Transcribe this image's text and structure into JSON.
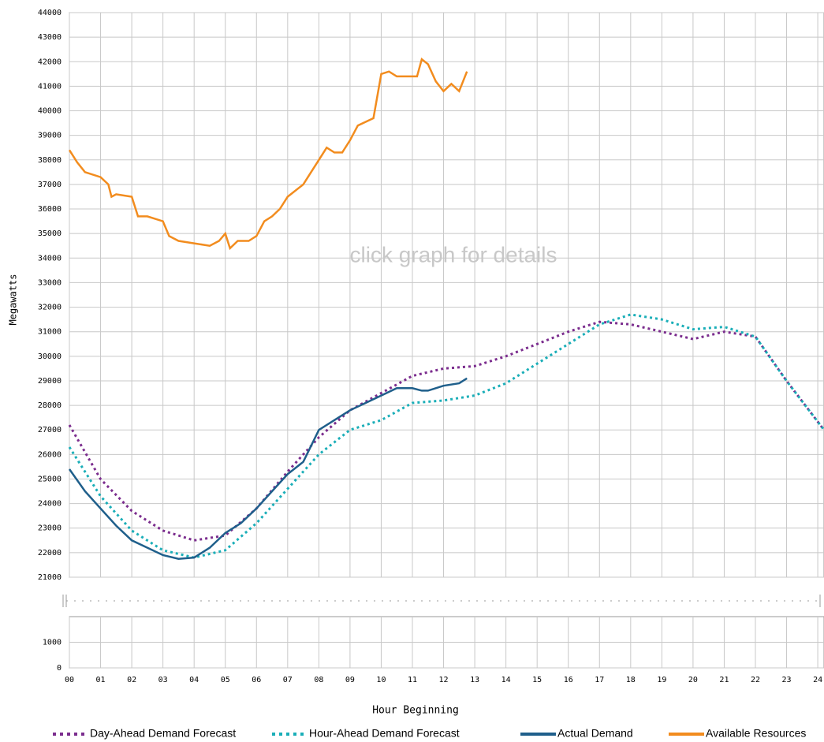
{
  "chart_data": {
    "type": "line",
    "annotation": "click graph for details",
    "x_label": "Hour Beginning",
    "y_label": "Megawatts",
    "xlim": [
      0,
      24.2
    ],
    "xticks": [
      {
        "value": 0,
        "label": "00"
      },
      {
        "value": 1,
        "label": "01"
      },
      {
        "value": 2,
        "label": "02"
      },
      {
        "value": 3,
        "label": "03"
      },
      {
        "value": 4,
        "label": "04"
      },
      {
        "value": 5,
        "label": "05"
      },
      {
        "value": 6,
        "label": "06"
      },
      {
        "value": 7,
        "label": "07"
      },
      {
        "value": 8,
        "label": "08"
      },
      {
        "value": 9,
        "label": "09"
      },
      10,
      11,
      12,
      13,
      14,
      15,
      16,
      17,
      18,
      19,
      20,
      21,
      22,
      23,
      24
    ],
    "ylim": [
      21000,
      44000
    ],
    "yticks": [
      21000,
      22000,
      23000,
      24000,
      25000,
      26000,
      27000,
      28000,
      29000,
      30000,
      31000,
      32000,
      33000,
      34000,
      35000,
      36000,
      37000,
      38000,
      39000,
      40000,
      41000,
      42000,
      43000,
      44000
    ],
    "lower_panel": {
      "ylim": [
        0,
        2000
      ],
      "yticks": [
        0,
        1000
      ]
    },
    "grid": true,
    "legend": "bottom",
    "series": [
      {
        "name": "Day-Ahead Demand Forecast",
        "color": "#7b2d8e",
        "style": "dotted",
        "x": [
          0,
          1,
          2,
          3,
          4,
          5,
          6,
          7,
          8,
          9,
          10,
          11,
          12,
          13,
          14,
          15,
          16,
          17,
          18,
          19,
          20,
          21,
          22,
          23,
          24.2
        ],
        "values": [
          27200,
          25000,
          23700,
          22900,
          22500,
          22700,
          23800,
          25300,
          26700,
          27800,
          28500,
          29200,
          29500,
          29600,
          30000,
          30500,
          31000,
          31400,
          31300,
          31000,
          30700,
          31000,
          30800,
          29000,
          27000
        ]
      },
      {
        "name": "Hour-Ahead Demand Forecast",
        "color": "#1aaeb8",
        "style": "dotted",
        "x": [
          0,
          1,
          2,
          3,
          4,
          5,
          6,
          7,
          8,
          9,
          10,
          11,
          12,
          13,
          14,
          15,
          16,
          17,
          18,
          19,
          20,
          21,
          22,
          23,
          24.2
        ],
        "values": [
          26300,
          24300,
          22900,
          22100,
          21800,
          22100,
          23200,
          24600,
          26000,
          27000,
          27400,
          28100,
          28200,
          28400,
          28900,
          29700,
          30500,
          31300,
          31700,
          31500,
          31100,
          31200,
          30800,
          29000,
          27000
        ]
      },
      {
        "name": "Actual Demand",
        "color": "#1f5f8b",
        "style": "solid",
        "x": [
          0,
          0.5,
          1,
          1.5,
          2,
          2.5,
          3,
          3.5,
          4,
          4.5,
          5,
          5.5,
          6,
          6.5,
          7,
          7.5,
          8,
          8.5,
          9,
          9.5,
          10,
          10.5,
          11,
          11.3,
          11.5,
          12,
          12.5,
          12.75
        ],
        "values": [
          25400,
          24500,
          23800,
          23100,
          22500,
          22200,
          21900,
          21750,
          21800,
          22200,
          22800,
          23200,
          23800,
          24500,
          25200,
          25700,
          27000,
          27400,
          27800,
          28100,
          28400,
          28700,
          28700,
          28600,
          28600,
          28800,
          28900,
          29100
        ]
      },
      {
        "name": "Available Resources",
        "color": "#f28c1e",
        "style": "solid",
        "x": [
          0,
          0.25,
          0.5,
          1,
          1.25,
          1.35,
          1.5,
          2,
          2.2,
          2.5,
          3,
          3.2,
          3.5,
          4,
          4.5,
          4.8,
          5,
          5.15,
          5.4,
          5.75,
          6,
          6.25,
          6.5,
          6.75,
          7,
          7.5,
          7.75,
          8,
          8.25,
          8.5,
          8.75,
          9,
          9.25,
          9.75,
          10,
          10.25,
          10.5,
          11,
          11.15,
          11.3,
          11.5,
          11.75,
          12,
          12.25,
          12.5,
          12.75
        ],
        "values": [
          38400,
          37900,
          37500,
          37300,
          37000,
          36500,
          36600,
          36500,
          35700,
          35700,
          35500,
          34900,
          34700,
          34600,
          34500,
          34700,
          35000,
          34400,
          34700,
          34700,
          34900,
          35500,
          35700,
          36000,
          36500,
          37000,
          37500,
          38000,
          38500,
          38300,
          38300,
          38800,
          39400,
          39700,
          41500,
          41600,
          41400,
          41400,
          41400,
          42100,
          41900,
          41200,
          40800,
          41100,
          40800,
          41600
        ]
      }
    ]
  }
}
